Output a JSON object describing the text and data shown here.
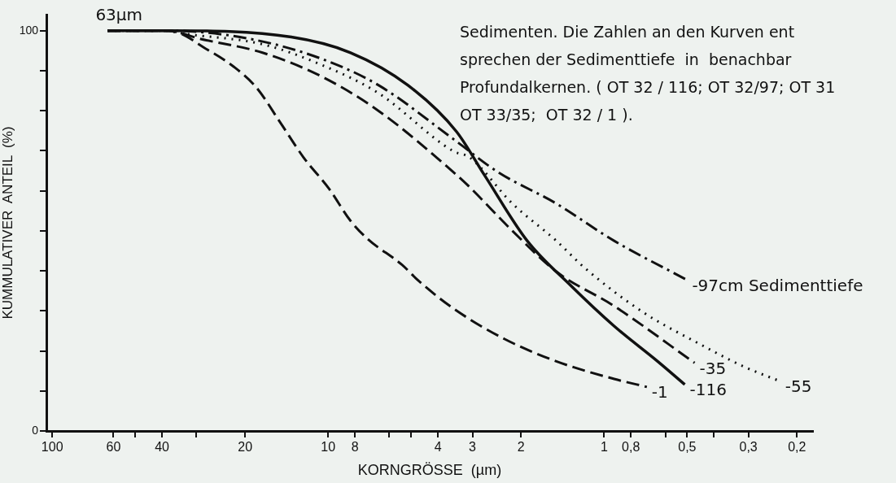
{
  "chart_data": {
    "type": "line",
    "xlabel": "KORNGRÖSSE  (µm)",
    "ylabel": "KUMMULATIVER  ANTEIL  (%)",
    "log": "x",
    "xlim": [
      105,
      0.175
    ],
    "ylim": [
      0,
      104
    ],
    "xticks": [
      100,
      60,
      {
        "value": 50,
        "label": null
      },
      40,
      {
        "value": 30,
        "label": null
      },
      20,
      10,
      8,
      {
        "value": 6,
        "label": null
      },
      {
        "value": 5,
        "label": null
      },
      4,
      3,
      2,
      1,
      {
        "value": 0.8,
        "label": "0,8"
      },
      {
        "value": 0.6,
        "label": null
      },
      {
        "value": 0.5,
        "label": "0,5"
      },
      {
        "value": 0.4,
        "label": null
      },
      {
        "value": 0.3,
        "label": "0,3"
      },
      {
        "value": 0.2,
        "label": "0,2"
      }
    ],
    "yticks": [
      0,
      {
        "value": 10,
        "label": null
      },
      {
        "value": 20,
        "label": null
      },
      {
        "value": 30,
        "label": null
      },
      {
        "value": 40,
        "label": null
      },
      {
        "value": 50,
        "label": null
      },
      {
        "value": 60,
        "label": null
      },
      {
        "value": 70,
        "label": null
      },
      {
        "value": 80,
        "label": null
      },
      {
        "value": 90,
        "label": null
      },
      100
    ],
    "grid": false,
    "legend": false,
    "marker": "none",
    "series": [
      {
        "name": "-1",
        "color": "#111111",
        "line_style": "dashed",
        "x": [
          63,
          38,
          27,
          21.9,
          18.2,
          14.9,
          12.3,
          9.9,
          8.3,
          7.2,
          5.4,
          4.7,
          3.5,
          2.3,
          1.49,
          0.92,
          0.7
        ],
        "values": [
          100,
          100,
          95,
          90.9,
          85.8,
          77,
          68.4,
          60.4,
          52.5,
          48,
          41.5,
          37.5,
          30.5,
          23,
          17.4,
          13,
          11
        ]
      },
      {
        "name": "-116",
        "color": "#111111",
        "line_style": "solid",
        "x": [
          63,
          38,
          13.6,
          8.3,
          5.15,
          3.43,
          2.72,
          1.9,
          1.32,
          0.92,
          0.64,
          0.51
        ],
        "values": [
          100,
          100,
          98.4,
          94.5,
          86.4,
          74.8,
          64,
          47.5,
          36.3,
          26.2,
          17.4,
          11.6
        ]
      },
      {
        "name": "-35",
        "color": "#111111",
        "line_style": "dashed",
        "x": [
          63,
          38,
          29.3,
          17.3,
          10.6,
          6.58,
          3.43,
          3.08,
          2.15,
          1.49,
          0.92,
          0.47
        ],
        "values": [
          100,
          100,
          98,
          94.5,
          88.6,
          80,
          64,
          61,
          50,
          39.8,
          31.2,
          17
        ]
      },
      {
        "name": "-55",
        "color": "#111111",
        "line_style": "dotted",
        "x": [
          63,
          38,
          35.8,
          17.3,
          10.6,
          6.58,
          3.5,
          3.08,
          2.15,
          1.49,
          1.17,
          0.72,
          0.45,
          0.31,
          0.23
        ],
        "values": [
          100,
          100,
          99.6,
          96.6,
          91.5,
          84.4,
          69.8,
          68.4,
          56.8,
          47.5,
          40.6,
          29.6,
          21.7,
          16,
          12.4
        ]
      },
      {
        "name": "-97cm Sedimenttiefe",
        "color": "#111111",
        "line_style": "dashdot",
        "x": [
          63,
          38,
          19.4,
          10.6,
          6.58,
          3.5,
          2.43,
          1.49,
          0.92,
          0.5
        ],
        "values": [
          100,
          100,
          98,
          93,
          86.4,
          72.8,
          64.7,
          56.8,
          47.5,
          37.7
        ]
      }
    ],
    "annotations": [
      {
        "text": "63µm",
        "x": 63,
        "y": 100
      },
      "Sedimenten. Die Zahlen an den Kurven ent\nsprechen der Sedimenttiefe  in  benachbar\nProfundalkernen. ( OT 32 / 116; OT 32/97; OT 31\nOT 33/35;  OT 32 / 1 )."
    ]
  }
}
